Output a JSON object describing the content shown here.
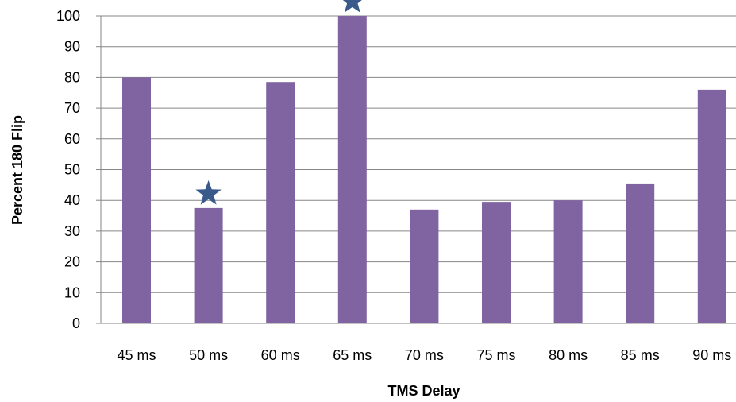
{
  "chart_data": {
    "type": "bar",
    "title": "",
    "xlabel": "TMS Delay",
    "ylabel": "Percent 180 Flip",
    "categories": [
      "45 ms",
      "50 ms",
      "60 ms",
      "65 ms",
      "70 ms",
      "75 ms",
      "80 ms",
      "85 ms",
      "90 ms"
    ],
    "values": [
      80,
      37.5,
      78.5,
      100,
      37,
      39.5,
      40,
      45.5,
      76
    ],
    "ylim": [
      0,
      100
    ],
    "yticks": [
      0,
      10,
      20,
      30,
      40,
      50,
      60,
      70,
      80,
      90,
      100
    ],
    "grid": true,
    "bar_color": "#8064a2",
    "significance_markers": {
      "symbol": "star",
      "color": "#3a5a8c",
      "categories": [
        "50 ms",
        "65 ms"
      ]
    }
  }
}
